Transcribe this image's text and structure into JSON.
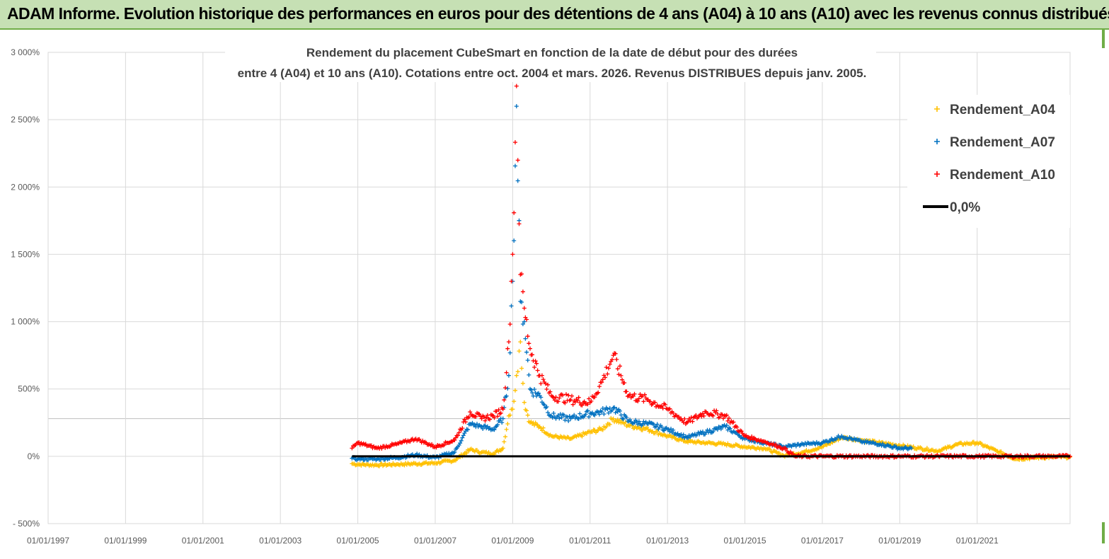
{
  "banner": {
    "title": "ADAM Informe. Evolution historique des performances en euros pour des détentions de 4 ans (A04) à 10 ans (A10) avec les revenus connus distribués"
  },
  "colors": {
    "A04": "#ffc000",
    "A07": "#0070c0",
    "A10": "#ff0000",
    "zero": "#000000",
    "grid": "#d9d9d9",
    "banner_bg": "#c6e0b4",
    "banner_border": "#70ad47"
  },
  "chart_data": {
    "type": "scatter",
    "title_lines": [
      "Rendement du placement CubeSmart en fonction de la date de début pour des durées",
      "entre 4 (A04) et 10 ans (A10).  Cotations entre oct. 2004 et mars. 2026. Revenus DISTRIBUES depuis janv. 2005."
    ],
    "xlabel": "",
    "ylabel": "",
    "x_ticks": [
      "01/01/1997",
      "01/01/1999",
      "01/01/2001",
      "01/01/2003",
      "01/01/2005",
      "01/01/2007",
      "01/01/2009",
      "01/01/2011",
      "01/01/2013",
      "01/01/2015",
      "01/01/2017",
      "01/01/2019",
      "01/01/2021"
    ],
    "x_tick_years": [
      1997,
      1999,
      2001,
      2003,
      2005,
      2007,
      2009,
      2011,
      2013,
      2015,
      2017,
      2019,
      2021
    ],
    "xlim": [
      1997.0,
      2023.4
    ],
    "y_ticks": [
      3000,
      2500,
      2000,
      1500,
      1000,
      500,
      0,
      -500
    ],
    "y_tick_labels": [
      "3 000%",
      "2 500%",
      "2 000%",
      "1 500%",
      "1 000%",
      "500%",
      "0%",
      "- 500%"
    ],
    "ylim": [
      -500,
      3000
    ],
    "legend": {
      "position": "top-right",
      "entries": [
        "Rendement_A04",
        "Rendement_A07",
        "Rendement_A10",
        "0,0%"
      ]
    },
    "series": [
      {
        "name": "Rendement_A04",
        "color_key": "A04",
        "x": [
          2004.85,
          2005.0,
          2005.5,
          2006.0,
          2006.5,
          2007.0,
          2007.5,
          2007.9,
          2008.2,
          2008.5,
          2008.75,
          2008.9,
          2009.0,
          2009.1,
          2009.2,
          2009.3,
          2009.45,
          2009.7,
          2010.0,
          2010.5,
          2011.0,
          2011.3,
          2011.6,
          2012.0,
          2012.5,
          2013.0,
          2013.5,
          2014.0,
          2014.5,
          2015.0,
          2015.5,
          2016.0,
          2016.5,
          2017.0,
          2017.5,
          2018.0,
          2018.5,
          2019.0,
          2019.5,
          2020.0,
          2020.5,
          2021.0,
          2021.5,
          2022.0,
          2022.5,
          2023.0,
          2023.4
        ],
        "y": [
          -55,
          -60,
          -65,
          -60,
          -55,
          -50,
          -30,
          50,
          30,
          20,
          60,
          300,
          350,
          600,
          850,
          400,
          250,
          220,
          150,
          130,
          180,
          200,
          280,
          230,
          200,
          150,
          110,
          100,
          90,
          70,
          60,
          5,
          30,
          70,
          140,
          120,
          100,
          80,
          60,
          40,
          90,
          100,
          40,
          -20,
          -10,
          -5,
          -5
        ]
      },
      {
        "name": "Rendement_A07",
        "color_key": "A07",
        "x": [
          2004.85,
          2005.0,
          2005.5,
          2006.0,
          2006.5,
          2007.0,
          2007.5,
          2007.9,
          2008.2,
          2008.5,
          2008.75,
          2008.9,
          2009.0,
          2009.1,
          2009.2,
          2009.3,
          2009.45,
          2009.7,
          2010.0,
          2010.5,
          2011.0,
          2011.3,
          2011.6,
          2012.0,
          2012.5,
          2013.0,
          2013.5,
          2014.0,
          2014.5,
          2015.0,
          2015.5,
          2016.0,
          2016.5,
          2017.0,
          2017.5,
          2018.0,
          2018.5,
          2019.0,
          2019.3
        ],
        "y": [
          -15,
          -20,
          -20,
          -10,
          10,
          -10,
          30,
          240,
          220,
          200,
          280,
          600,
          1300,
          2600,
          1150,
          1000,
          500,
          450,
          300,
          280,
          320,
          330,
          360,
          260,
          240,
          200,
          140,
          180,
          220,
          130,
          100,
          70,
          90,
          100,
          150,
          110,
          90,
          60,
          60
        ]
      },
      {
        "name": "Rendement_A10",
        "color_key": "A10",
        "x": [
          2004.85,
          2005.0,
          2005.5,
          2006.0,
          2006.5,
          2007.0,
          2007.5,
          2007.9,
          2008.2,
          2008.5,
          2008.75,
          2008.9,
          2009.0,
          2009.1,
          2009.2,
          2009.3,
          2009.45,
          2009.7,
          2010.0,
          2010.5,
          2011.0,
          2011.3,
          2011.6,
          2012.0,
          2012.5,
          2013.0,
          2013.5,
          2014.0,
          2014.5,
          2015.0,
          2015.5,
          2016.0,
          2016.3,
          2016.5,
          2017.0,
          2017.5,
          2018.0,
          2018.5,
          2019.0,
          2019.5,
          2020.0,
          2020.5,
          2021.0,
          2021.5,
          2022.0,
          2022.5,
          2023.0,
          2023.4
        ],
        "y": [
          60,
          100,
          60,
          90,
          130,
          70,
          120,
          330,
          280,
          300,
          350,
          850,
          1500,
          2750,
          1350,
          1100,
          800,
          600,
          450,
          420,
          400,
          550,
          750,
          450,
          420,
          350,
          250,
          330,
          300,
          150,
          110,
          60,
          0,
          0,
          0,
          0,
          0,
          0,
          0,
          0,
          0,
          0,
          0,
          0,
          0,
          0,
          0,
          0
        ]
      },
      {
        "name": "0,0%",
        "color_key": "zero",
        "type": "line",
        "x": [
          2004.85,
          2023.4
        ],
        "y": [
          0,
          0
        ]
      }
    ]
  }
}
